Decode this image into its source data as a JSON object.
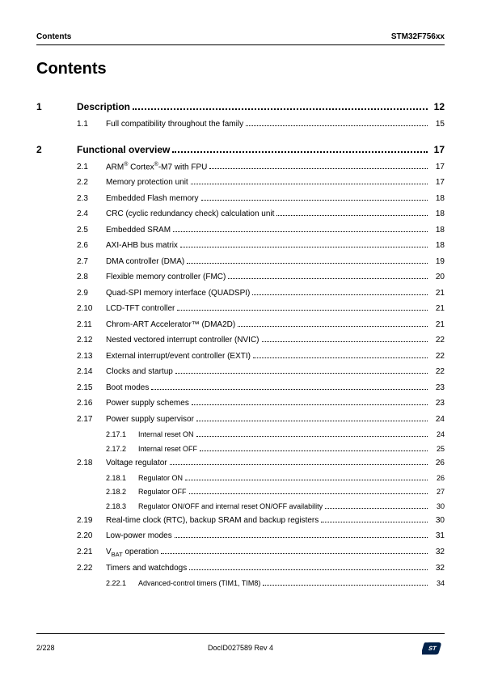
{
  "header": {
    "left": "Contents",
    "right": "STM32F756xx"
  },
  "title": "Contents",
  "chapters": [
    {
      "num": "1",
      "title": "Description",
      "page": "12",
      "entries": [
        {
          "num": "1.1",
          "text": "Full compatibility throughout the family",
          "page": "15",
          "subs": []
        }
      ]
    },
    {
      "num": "2",
      "title": "Functional overview",
      "page": "17",
      "entries": [
        {
          "num": "2.1",
          "text": "ARM<sup>®</sup> Cortex<sup>®</sup>-M7 with FPU",
          "page": "17",
          "subs": []
        },
        {
          "num": "2.2",
          "text": "Memory protection unit",
          "page": "17",
          "subs": []
        },
        {
          "num": "2.3",
          "text": "Embedded Flash memory",
          "page": "18",
          "subs": []
        },
        {
          "num": "2.4",
          "text": "CRC (cyclic redundancy check) calculation unit",
          "page": "18",
          "subs": []
        },
        {
          "num": "2.5",
          "text": "Embedded SRAM",
          "page": "18",
          "subs": []
        },
        {
          "num": "2.6",
          "text": "AXI-AHB bus matrix",
          "page": "18",
          "subs": []
        },
        {
          "num": "2.7",
          "text": "DMA controller (DMA)",
          "page": "19",
          "subs": []
        },
        {
          "num": "2.8",
          "text": "Flexible memory controller (FMC)",
          "page": "20",
          "subs": []
        },
        {
          "num": "2.9",
          "text": "Quad-SPI memory interface (QUADSPI)",
          "page": "21",
          "subs": []
        },
        {
          "num": "2.10",
          "text": "LCD-TFT controller",
          "page": "21",
          "subs": []
        },
        {
          "num": "2.11",
          "text": "Chrom-ART Accelerator™ (DMA2D)",
          "page": "21",
          "subs": []
        },
        {
          "num": "2.12",
          "text": "Nested vectored interrupt controller (NVIC)",
          "page": "22",
          "subs": []
        },
        {
          "num": "2.13",
          "text": "External interrupt/event controller (EXTI)",
          "page": "22",
          "subs": []
        },
        {
          "num": "2.14",
          "text": "Clocks and startup",
          "page": "22",
          "subs": []
        },
        {
          "num": "2.15",
          "text": "Boot modes",
          "page": "23",
          "subs": []
        },
        {
          "num": "2.16",
          "text": "Power supply schemes",
          "page": "23",
          "subs": []
        },
        {
          "num": "2.17",
          "text": "Power supply supervisor",
          "page": "24",
          "subs": [
            {
              "num": "2.17.1",
              "text": "Internal reset ON",
              "page": "24"
            },
            {
              "num": "2.17.2",
              "text": "Internal reset OFF",
              "page": "25"
            }
          ]
        },
        {
          "num": "2.18",
          "text": "Voltage regulator",
          "page": "26",
          "subs": [
            {
              "num": "2.18.1",
              "text": "Regulator ON",
              "page": "26"
            },
            {
              "num": "2.18.2",
              "text": "Regulator OFF",
              "page": "27"
            },
            {
              "num": "2.18.3",
              "text": "Regulator ON/OFF and internal reset ON/OFF availability",
              "page": "30"
            }
          ]
        },
        {
          "num": "2.19",
          "text": "Real-time clock (RTC), backup SRAM and backup registers",
          "page": "30",
          "subs": []
        },
        {
          "num": "2.20",
          "text": "Low-power modes",
          "page": "31",
          "subs": []
        },
        {
          "num": "2.21",
          "text": "V<sub>BAT</sub> operation",
          "page": "32",
          "subs": []
        },
        {
          "num": "2.22",
          "text": "Timers and watchdogs",
          "page": "32",
          "subs": [
            {
              "num": "2.22.1",
              "text": "Advanced-control timers (TIM1, TIM8)",
              "page": "34"
            }
          ]
        }
      ]
    }
  ],
  "footer": {
    "pagenum": "2/228",
    "docid": "DocID027589 Rev 4"
  }
}
